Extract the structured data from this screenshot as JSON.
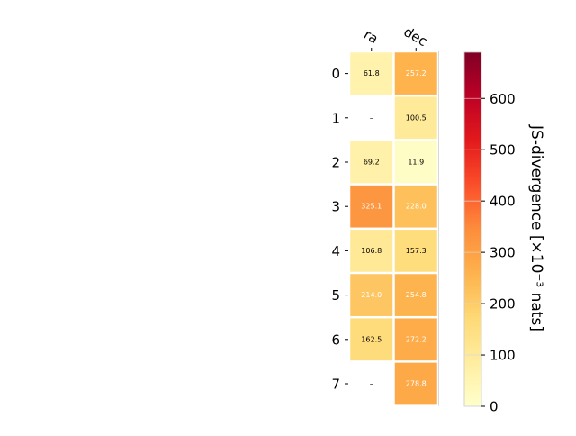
{
  "chart_data": {
    "type": "heatmap",
    "title": "",
    "columns": [
      "ra",
      "dec"
    ],
    "rows": [
      "0",
      "1",
      "2",
      "3",
      "4",
      "5",
      "6",
      "7"
    ],
    "values": [
      [
        61.8,
        257.2
      ],
      [
        null,
        100.5
      ],
      [
        69.2,
        11.9
      ],
      [
        325.1,
        228.0
      ],
      [
        106.8,
        157.3
      ],
      [
        214.0,
        254.8
      ],
      [
        162.5,
        272.2
      ],
      [
        null,
        278.8
      ]
    ],
    "missing_label": "–",
    "missing_cell_color": "#ffffff",
    "colormap": "YlOrRd",
    "colorbar": {
      "label": "JS-divergence [×10⁻³ nats]",
      "vmin": 0,
      "vmax": 690,
      "ticks": [
        0,
        100,
        200,
        300,
        400,
        500,
        600
      ],
      "position": "right"
    },
    "text_color_light": "#ffffff",
    "text_color_dark": "#000000",
    "grid": false
  }
}
